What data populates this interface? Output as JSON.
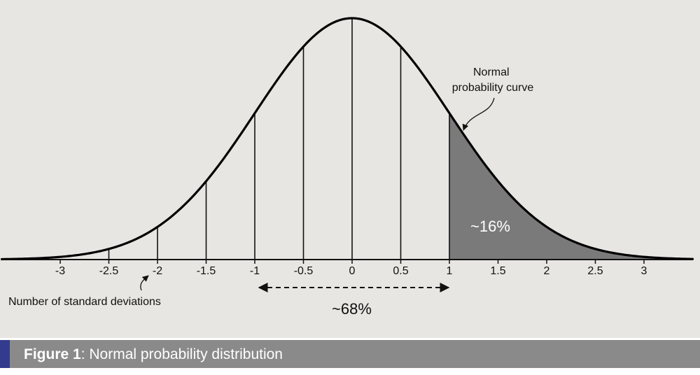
{
  "chart_data": {
    "type": "area",
    "title": "",
    "xlabel": "Number of standard deviations",
    "ylabel": "",
    "xlim": [
      -3.5,
      3.5
    ],
    "x_ticks": [
      -3,
      -2.5,
      -2,
      -1.5,
      -1,
      -0.5,
      0,
      0.5,
      1,
      1.5,
      2,
      2.5,
      3
    ],
    "x_tick_labels": [
      "-3",
      "-2.5",
      "-2",
      "-1.5",
      "-1",
      "-0.5",
      "0",
      "0.5",
      "1",
      "1.5",
      "2",
      "2.5",
      "3"
    ],
    "vertical_lines_at": [
      -2.5,
      -2,
      -1.5,
      -1,
      -0.5,
      0,
      0.5,
      1
    ],
    "series": [
      {
        "name": "",
        "curve": "normal",
        "mean": 0,
        "sd": 1
      }
    ],
    "shaded_region": {
      "from": 1,
      "to": 3.5,
      "color": "#7a7a7a",
      "label": "~16%"
    },
    "span_annotation": {
      "from": -1,
      "to": 1,
      "label": "~68%"
    },
    "curve_label": "Normal probability curve",
    "curve_label_lines": [
      "Normal",
      "probability curve"
    ],
    "grid": false,
    "legend": "none"
  },
  "caption": {
    "label_bold": "Figure 1",
    "separator": ":",
    "text": " Normal probability distribution"
  },
  "colors": {
    "background": "#e7e6e2",
    "curve": "#000000",
    "shade": "#7a7a7a",
    "caption_bar": "#8a8a8a",
    "caption_accent": "#333c8c"
  }
}
